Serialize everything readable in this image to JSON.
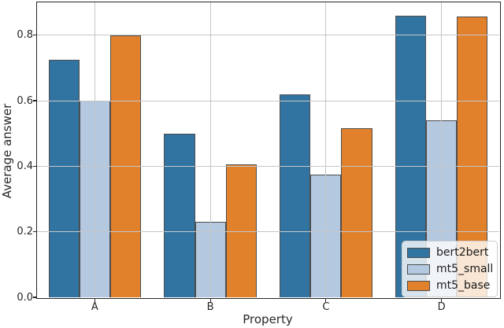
{
  "chart_data": {
    "type": "bar",
    "title": "",
    "xlabel": "Property",
    "ylabel": "Average answer",
    "categories": [
      "A",
      "B",
      "C",
      "D"
    ],
    "series": [
      {
        "name": "bert2bert",
        "color": "#3274a1",
        "values": [
          0.725,
          0.5,
          0.62,
          0.86
        ]
      },
      {
        "name": "mt5_small",
        "color": "#b4c8e0",
        "values": [
          0.6,
          0.23,
          0.375,
          0.54
        ]
      },
      {
        "name": "mt5_base",
        "color": "#e1812c",
        "values": [
          0.8,
          0.405,
          0.515,
          0.858
        ]
      }
    ],
    "ylim": [
      0,
      0.9
    ],
    "yticks": [
      0.0,
      0.2,
      0.4,
      0.6,
      0.8
    ],
    "ytick_labels": [
      "0.0",
      "0.2",
      "0.4",
      "0.6",
      "0.8"
    ],
    "grid": true,
    "grid_over_bars": true,
    "grid_color": "#c6c6c6",
    "bar_edge_color": "#4d4d4d",
    "spine_color": "#262626",
    "legend_position": "lower right",
    "legend_background": "rgba(255,255,255,0.8)"
  }
}
